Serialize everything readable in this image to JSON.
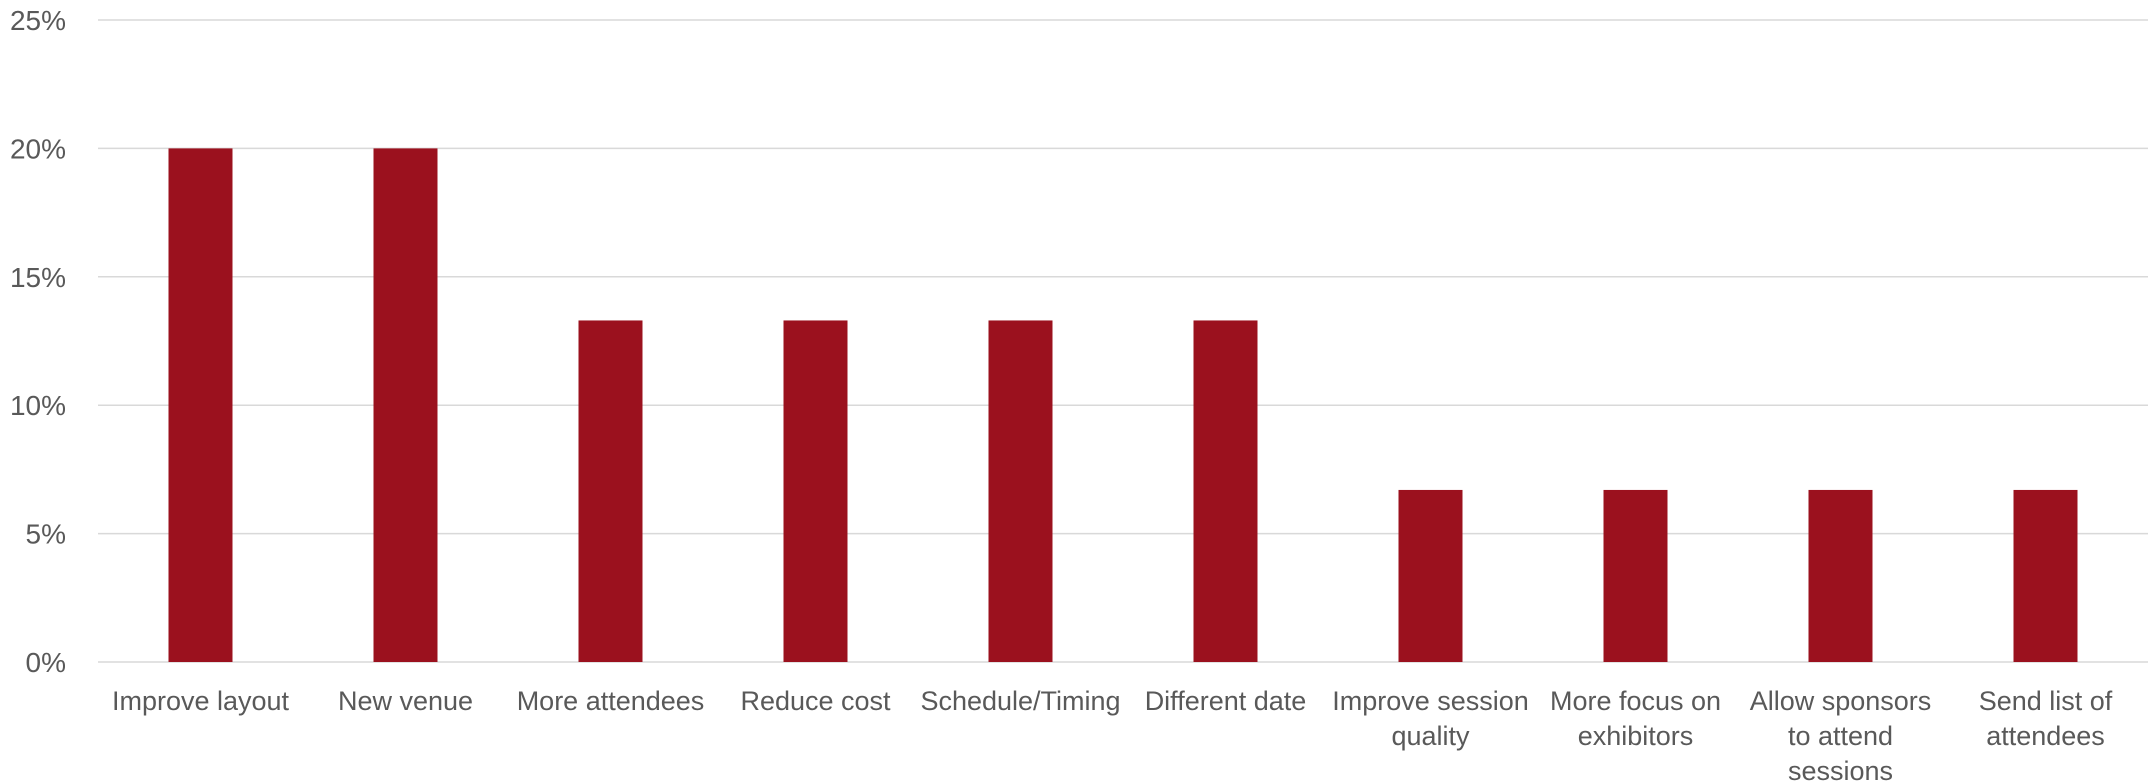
{
  "chart_data": {
    "type": "bar",
    "title": "",
    "xlabel": "",
    "ylabel": "",
    "ylim": [
      0,
      25
    ],
    "y_ticks": [
      "0%",
      "5%",
      "10%",
      "15%",
      "20%",
      "25%"
    ],
    "y_tick_values": [
      0,
      5,
      10,
      15,
      20,
      25
    ],
    "grid": true,
    "legend": "none",
    "bar_color": "#9B111E",
    "categories": [
      "Improve layout",
      "New venue",
      "More attendees",
      "Reduce cost",
      "Schedule/Timing",
      "Different date",
      "Improve session quality",
      "More focus on exhibitors",
      "Allow sponsors to attend sessions",
      "Send list of attendees"
    ],
    "category_lines": [
      [
        "Improve layout"
      ],
      [
        "New venue"
      ],
      [
        "More attendees"
      ],
      [
        "Reduce cost"
      ],
      [
        "Schedule/Timing"
      ],
      [
        "Different date"
      ],
      [
        "Improve session",
        "quality"
      ],
      [
        "More focus on",
        "exhibitors"
      ],
      [
        "Allow sponsors",
        "to attend",
        "sessions"
      ],
      [
        "Send list of",
        "attendees"
      ]
    ],
    "values": [
      20.0,
      20.0,
      13.3,
      13.3,
      13.3,
      13.3,
      6.7,
      6.7,
      6.7,
      6.7
    ]
  }
}
